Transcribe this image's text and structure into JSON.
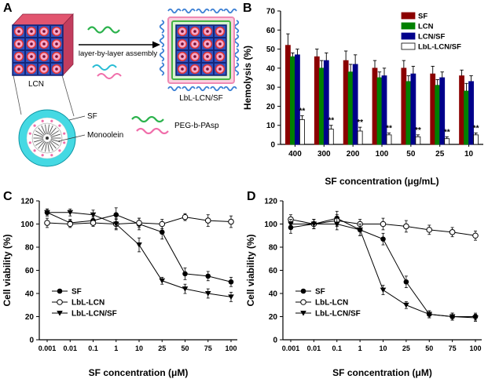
{
  "panels": {
    "a": {
      "label": "A",
      "lcn": "LCN",
      "sf": "SF",
      "monoolein": "Monoolein",
      "peg": "PEG-b-PAsp",
      "arrow_label": "layer-by-layer assembly",
      "product": "LbL-LCN/SF"
    },
    "b": {
      "label": "B"
    },
    "c": {
      "label": "C"
    },
    "d": {
      "label": "D"
    }
  },
  "colors": {
    "sf_bar": "#8b0000",
    "lcn_bar": "#008000",
    "lcnsf_bar": "#00008b",
    "lbl_bar": "#ffffff",
    "significance": "#1c1ccd",
    "squiggle_blue": "#3b7fd4",
    "squiggle_green": "#2bb24c",
    "squiggle_cyan": "#27bcd4",
    "squiggle_pink": "#f06eaa"
  },
  "chart_data": [
    {
      "id": "hemolysis",
      "type": "bar",
      "panel": "B",
      "xlabel": "SF concentration (μg/mL)",
      "ylabel": "Hemolysis (%)",
      "ylim": [
        0,
        70
      ],
      "yticks": [
        0,
        10,
        20,
        30,
        40,
        50,
        60,
        70
      ],
      "categories": [
        "400",
        "300",
        "200",
        "100",
        "50",
        "25",
        "10"
      ],
      "legend_position": "top-right",
      "sig_color": "#1c1ccd",
      "series": [
        {
          "name": "SF",
          "color": "#8b0000",
          "values": [
            52,
            46,
            44,
            40,
            40,
            37,
            36
          ],
          "errors": [
            6,
            4,
            5,
            4,
            4,
            4,
            3
          ]
        },
        {
          "name": "LCN",
          "color": "#008000",
          "values": [
            46,
            40,
            38,
            35,
            33,
            31,
            28
          ],
          "errors": [
            2,
            4,
            4,
            3,
            3,
            3,
            4
          ]
        },
        {
          "name": "LCN/SF",
          "color": "#00008b",
          "values": [
            47,
            44,
            42,
            36,
            37,
            35,
            33
          ],
          "errors": [
            3,
            4,
            5,
            4,
            4,
            3,
            3
          ]
        },
        {
          "name": "LbL-LCN/SF",
          "color": "#ffffff",
          "open": true,
          "significance": "**",
          "values": [
            13,
            8,
            7,
            5,
            4,
            3,
            5
          ],
          "errors": [
            2,
            2,
            2,
            1,
            1,
            1,
            1
          ]
        }
      ]
    },
    {
      "id": "viability_c",
      "type": "line",
      "panel": "C",
      "xlabel": "SF concentration (μM)",
      "ylabel": "Cell viability (%)",
      "ylim": [
        0,
        120
      ],
      "yticks": [
        0,
        20,
        40,
        60,
        80,
        100,
        120
      ],
      "categories": [
        "0.001",
        "0.01",
        "0.1",
        "1",
        "10",
        "25",
        "50",
        "75",
        "100"
      ],
      "legend_position": "bottom-left",
      "series": [
        {
          "name": "SF",
          "marker": "filled-circle",
          "values": [
            110,
            101,
            103,
            108,
            100,
            93,
            57,
            55,
            50
          ],
          "errors": [
            3,
            3,
            3,
            6,
            5,
            6,
            5,
            4,
            4
          ]
        },
        {
          "name": "LbL-LCN",
          "marker": "open-circle",
          "values": [
            101,
            100,
            101,
            100,
            101,
            100,
            106,
            103,
            102
          ],
          "errors": [
            4,
            3,
            3,
            4,
            4,
            4,
            3,
            5,
            5
          ]
        },
        {
          "name": "LbL-LCN/SF",
          "marker": "filled-triangle-down",
          "values": [
            110,
            110,
            108,
            100,
            82,
            51,
            44,
            40,
            37
          ],
          "errors": [
            3,
            3,
            4,
            5,
            6,
            3,
            4,
            4,
            4
          ]
        }
      ]
    },
    {
      "id": "viability_d",
      "type": "line",
      "panel": "D",
      "xlabel": "SF concentration (μM)",
      "ylabel": "Cell viability (%)",
      "ylim": [
        0,
        120
      ],
      "yticks": [
        0,
        20,
        40,
        60,
        80,
        100,
        120
      ],
      "categories": [
        "0.001",
        "0.01",
        "0.1",
        "1",
        "10",
        "25",
        "50",
        "75",
        "100"
      ],
      "legend_position": "bottom-left",
      "series": [
        {
          "name": "SF",
          "marker": "filled-circle",
          "values": [
            97,
            100,
            105,
            95,
            87,
            50,
            22,
            20,
            20
          ],
          "errors": [
            5,
            4,
            6,
            5,
            5,
            5,
            3,
            3,
            3
          ]
        },
        {
          "name": "LbL-LCN",
          "marker": "open-circle",
          "values": [
            104,
            100,
            103,
            100,
            100,
            98,
            95,
            93,
            90
          ],
          "errors": [
            4,
            4,
            5,
            4,
            5,
            5,
            4,
            4,
            4
          ]
        },
        {
          "name": "LbL-LCN/SF",
          "marker": "filled-triangle-down",
          "values": [
            100,
            100,
            100,
            95,
            43,
            30,
            22,
            20,
            19
          ],
          "errors": [
            4,
            4,
            5,
            5,
            4,
            3,
            3,
            3,
            3
          ]
        }
      ]
    }
  ]
}
